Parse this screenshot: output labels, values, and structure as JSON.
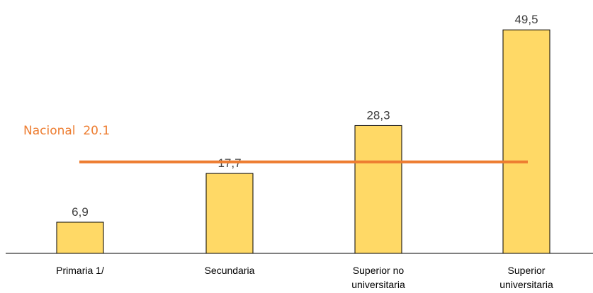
{
  "chart_data": {
    "type": "bar",
    "categories": [
      [
        "Primaria 1/"
      ],
      [
        "Secundaria"
      ],
      [
        "Superior no",
        "universitaria"
      ],
      [
        "Superior",
        "universitaria"
      ]
    ],
    "values": [
      6.9,
      17.7,
      28.3,
      49.5
    ],
    "value_labels": [
      "6,9",
      "17,7",
      "28,3",
      "49,5"
    ],
    "ylim": [
      0,
      52
    ],
    "grid": false,
    "legend": "none",
    "reference_line": {
      "label": "Nacional  20.1",
      "value": 20.1
    },
    "colors": {
      "bar_fill": "#FFD966",
      "bar_stroke": "#000000",
      "reference": "#ED7D31",
      "axis": "#000000",
      "value_text": "#404040"
    }
  }
}
